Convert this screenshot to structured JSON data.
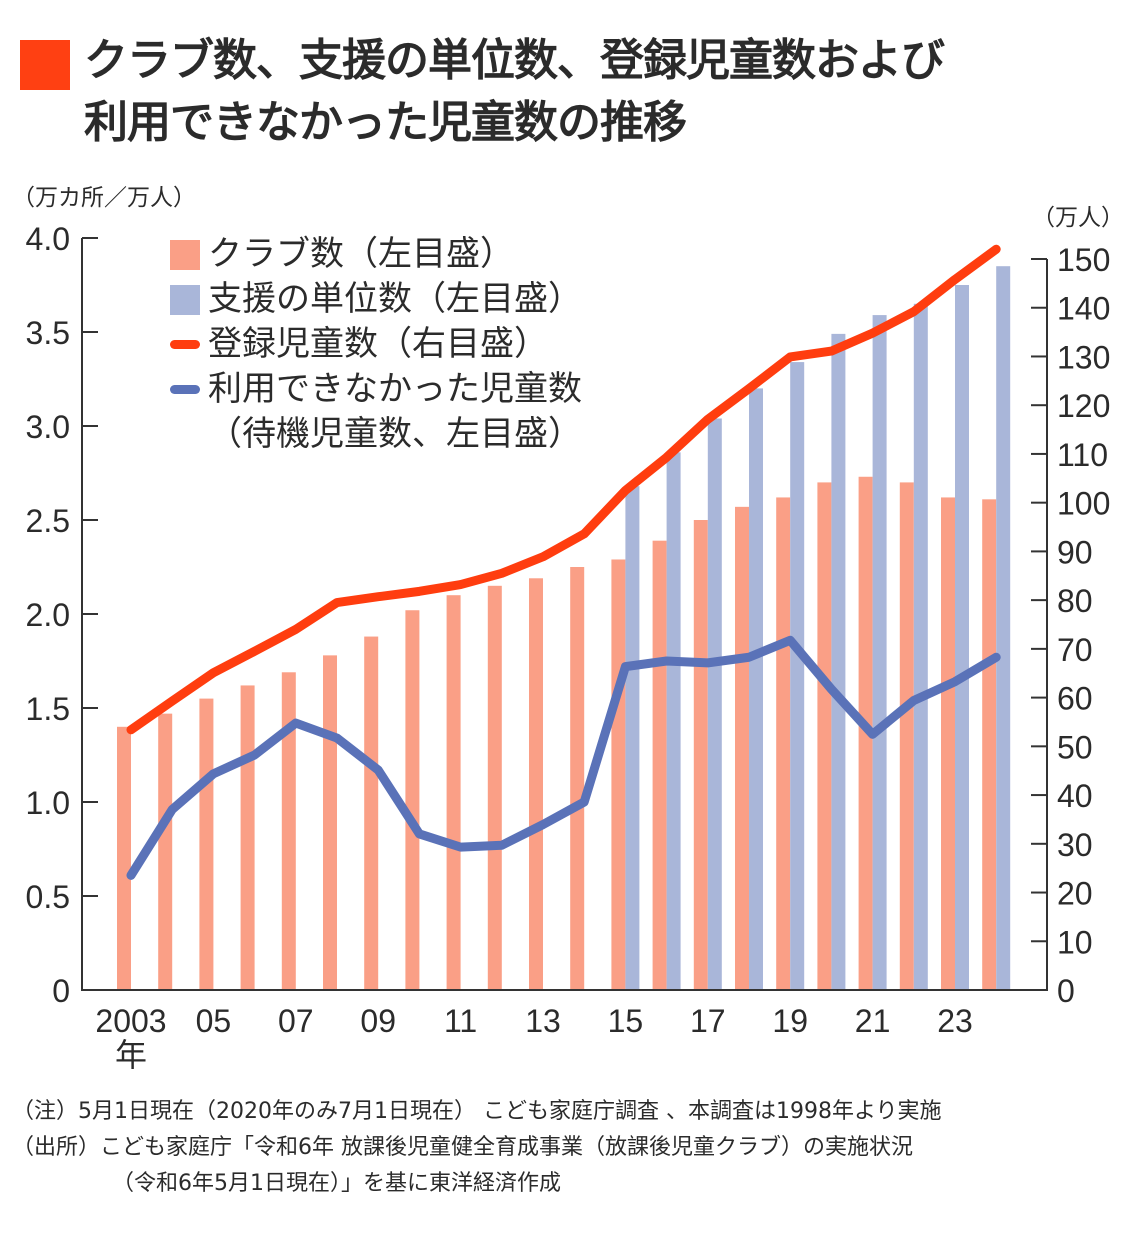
{
  "title": {
    "line1": "クラブ数、支援の単位数、登録児童数および",
    "line2": "利用できなかった児童数の推移",
    "marker_color": "#ff4012"
  },
  "axes": {
    "left_unit": "（万カ所／万人）",
    "right_unit": "（万人）",
    "x_suffix": "年"
  },
  "legend": {
    "clubs": "クラブ数（左目盛）",
    "units": "支援の単位数（左目盛）",
    "registered": "登録児童数（右目盛）",
    "waiting_line1": "利用できなかった児童数",
    "waiting_line2": "（待機児童数、左目盛）"
  },
  "colors": {
    "clubs": "#fa9f86",
    "units": "#a9b6d9",
    "registered": "#ff3d0f",
    "waiting": "#5a72b8",
    "axis": "#333333"
  },
  "notes": {
    "note": "（注）5月1日現在（2020年のみ7月1日現在） こども家庭庁調査 、本調査は1998年より実施",
    "source_line1": "（出所）こども家庭庁「令和6年 放課後児童健全育成事業（放課後児童クラブ）の実施状況",
    "source_line2": "（令和6年5月1日現在）」を基に東洋経済作成"
  },
  "chart_data": {
    "type": "bar",
    "title": "クラブ数、支援の単位数、登録児童数および利用できなかった児童数の推移",
    "xlabel": "年",
    "ylabel": "万カ所／万人",
    "ylabel_right": "万人",
    "x": [
      2003,
      2004,
      2005,
      2006,
      2007,
      2008,
      2009,
      2010,
      2011,
      2012,
      2013,
      2014,
      2015,
      2016,
      2017,
      2018,
      2019,
      2020,
      2021,
      2022,
      2023,
      2024
    ],
    "x_tick_labels": [
      "2003",
      "05",
      "07",
      "09",
      "11",
      "13",
      "15",
      "17",
      "19",
      "21",
      "23"
    ],
    "x_tick_years": [
      2003,
      2005,
      2007,
      2009,
      2011,
      2013,
      2015,
      2017,
      2019,
      2021,
      2023
    ],
    "ylim": [
      0,
      4.0
    ],
    "yticks": [
      "0",
      "0.5",
      "1.0",
      "1.5",
      "2.0",
      "2.5",
      "3.0",
      "3.5",
      "4.0"
    ],
    "ylim_right": [
      0,
      150
    ],
    "yticks_right": [
      "0",
      "10",
      "20",
      "30",
      "40",
      "50",
      "60",
      "70",
      "80",
      "90",
      "100",
      "110",
      "120",
      "130",
      "140",
      "150"
    ],
    "grid": false,
    "legend_position": "top-left",
    "series": [
      {
        "name": "クラブ数（左目盛）",
        "kind": "bar",
        "axis": "left",
        "values": [
          1.4,
          1.47,
          1.55,
          1.62,
          1.69,
          1.78,
          1.88,
          2.02,
          2.1,
          2.15,
          2.19,
          2.25,
          2.29,
          2.39,
          2.5,
          2.57,
          2.62,
          2.7,
          2.73,
          2.7,
          2.62,
          2.61
        ]
      },
      {
        "name": "支援の単位数（左目盛）",
        "kind": "bar",
        "axis": "left",
        "values": [
          null,
          null,
          null,
          null,
          null,
          null,
          null,
          null,
          null,
          null,
          null,
          null,
          2.68,
          2.86,
          3.04,
          3.2,
          3.34,
          3.49,
          3.59,
          3.65,
          3.75,
          3.85
        ]
      },
      {
        "name": "登録児童数（右目盛）",
        "kind": "line",
        "axis": "right",
        "values": [
          53.4,
          59.3,
          65.1,
          69.5,
          74.0,
          79.5,
          80.7,
          81.8,
          83.2,
          85.5,
          88.9,
          93.6,
          102.5,
          109.3,
          117.1,
          123.4,
          129.9,
          131.1,
          134.8,
          139.2,
          145.8,
          152.0
        ]
      },
      {
        "name": "利用できなかった児童数（待機児童数、左目盛）",
        "kind": "line",
        "axis": "left",
        "values": [
          0.61,
          0.96,
          1.15,
          1.25,
          1.42,
          1.34,
          1.17,
          0.83,
          0.76,
          0.77,
          0.88,
          1.0,
          1.72,
          1.75,
          1.74,
          1.77,
          1.86,
          1.6,
          1.36,
          1.54,
          1.64,
          1.77
        ]
      }
    ]
  }
}
